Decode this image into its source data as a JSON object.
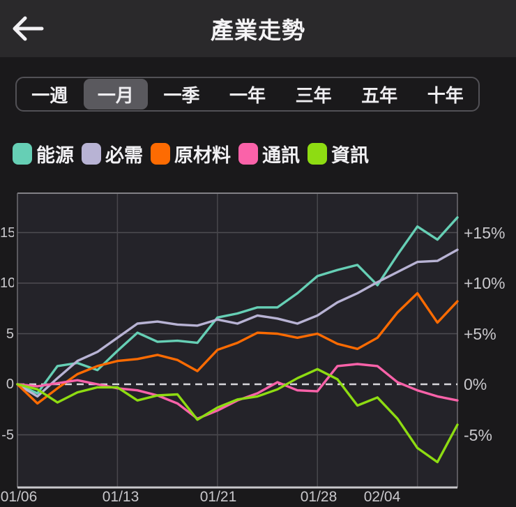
{
  "header": {
    "title": "產業走勢",
    "back_icon": "arrow-left"
  },
  "period_tabs": {
    "options": [
      "一週",
      "一月",
      "一季",
      "一年",
      "三年",
      "五年",
      "十年"
    ],
    "selected": "一月",
    "selected_index": 1
  },
  "chart_data": {
    "type": "line",
    "unit": "percent",
    "x_count": 23,
    "x_tick_labels": [
      "01/06",
      "01/13",
      "01/21",
      "01/28",
      "02/04"
    ],
    "x_tick_indices": [
      0,
      5,
      10,
      15,
      20
    ],
    "y_tick_values": [
      15,
      10,
      5,
      0,
      -5
    ],
    "y_axis_left_labels": [
      "15",
      "10",
      "5",
      "0",
      "-5"
    ],
    "y_axis_right_labels": [
      "+15%",
      "+10%",
      "+5%",
      "0%",
      "-5%"
    ],
    "ylim": [
      -10.2,
      18.9
    ],
    "grid": true,
    "zero_line": "dashed",
    "legend_position": "top-left",
    "series": [
      {
        "name": "能源",
        "color": "#66cfb5",
        "values": [
          0,
          -0.9,
          1.8,
          2.1,
          1.4,
          3.3,
          5.1,
          4.2,
          4.3,
          4.1,
          6.6,
          7.0,
          7.6,
          7.6,
          9.0,
          10.7,
          11.3,
          11.8,
          9.8,
          12.8,
          15.6,
          14.3,
          16.5
        ]
      },
      {
        "name": "必需",
        "color": "#b8b3d4",
        "values": [
          0,
          -1.2,
          0.6,
          2.3,
          3.2,
          4.6,
          6.0,
          6.2,
          5.9,
          5.8,
          6.4,
          6.0,
          6.8,
          6.5,
          6.0,
          6.8,
          8.1,
          9.0,
          10.1,
          11.1,
          12.1,
          12.2,
          13.3
        ]
      },
      {
        "name": "原材料",
        "color": "#fd6b02",
        "values": [
          0,
          -1.9,
          -0.4,
          1.0,
          1.8,
          2.3,
          2.5,
          2.9,
          2.4,
          1.3,
          3.4,
          4.1,
          5.1,
          5.0,
          4.6,
          5.0,
          4.0,
          3.5,
          4.6,
          7.1,
          9.0,
          6.1,
          8.2
        ]
      },
      {
        "name": "通訊",
        "color": "#fa62a9",
        "values": [
          0,
          -0.2,
          0.1,
          0.4,
          0,
          -0.4,
          -0.6,
          -1.1,
          -1.9,
          -3.4,
          -2.6,
          -1.6,
          -0.9,
          0.2,
          -0.6,
          -0.7,
          1.8,
          2.0,
          1.8,
          0.2,
          -0.6,
          -1.2,
          -1.6
        ]
      },
      {
        "name": "資訊",
        "color": "#8edc12",
        "values": [
          0,
          -0.5,
          -1.8,
          -0.8,
          -0.3,
          -0.3,
          -1.6,
          -1.1,
          -1.0,
          -3.5,
          -2.3,
          -1.5,
          -1.2,
          -0.5,
          0.6,
          1.5,
          0.5,
          -2.1,
          -1.3,
          -3.4,
          -6.3,
          -7.7,
          -4.0
        ]
      }
    ]
  },
  "colors": {
    "page_bg": "#1a191b",
    "header_bg": "#2a292b",
    "plot_bg": "#242329",
    "grid_line": "#4e4d52",
    "plot_border": "#6e6d72",
    "bottom_axis": "#c9c8cc",
    "zero_line": "#d8d7db",
    "tab_selected_bg": "#5a595e",
    "tab_border": "#525156",
    "text_primary": "#f5f4f6",
    "text_axis": "#c9c8cc"
  }
}
